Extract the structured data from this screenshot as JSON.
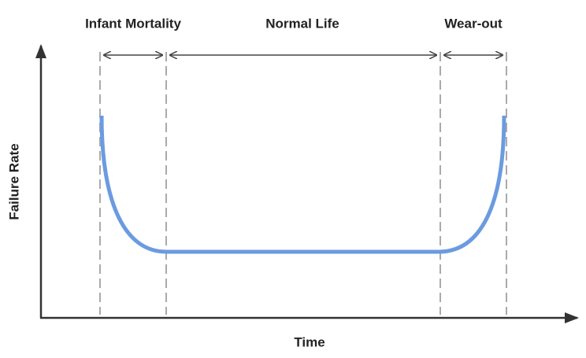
{
  "phases": [
    {
      "label": "Infant Mortality"
    },
    {
      "label": "Normal Life"
    },
    {
      "label": "Wear-out"
    }
  ],
  "axes": {
    "y_label": "Failure Rate",
    "x_label": "Time"
  }
}
